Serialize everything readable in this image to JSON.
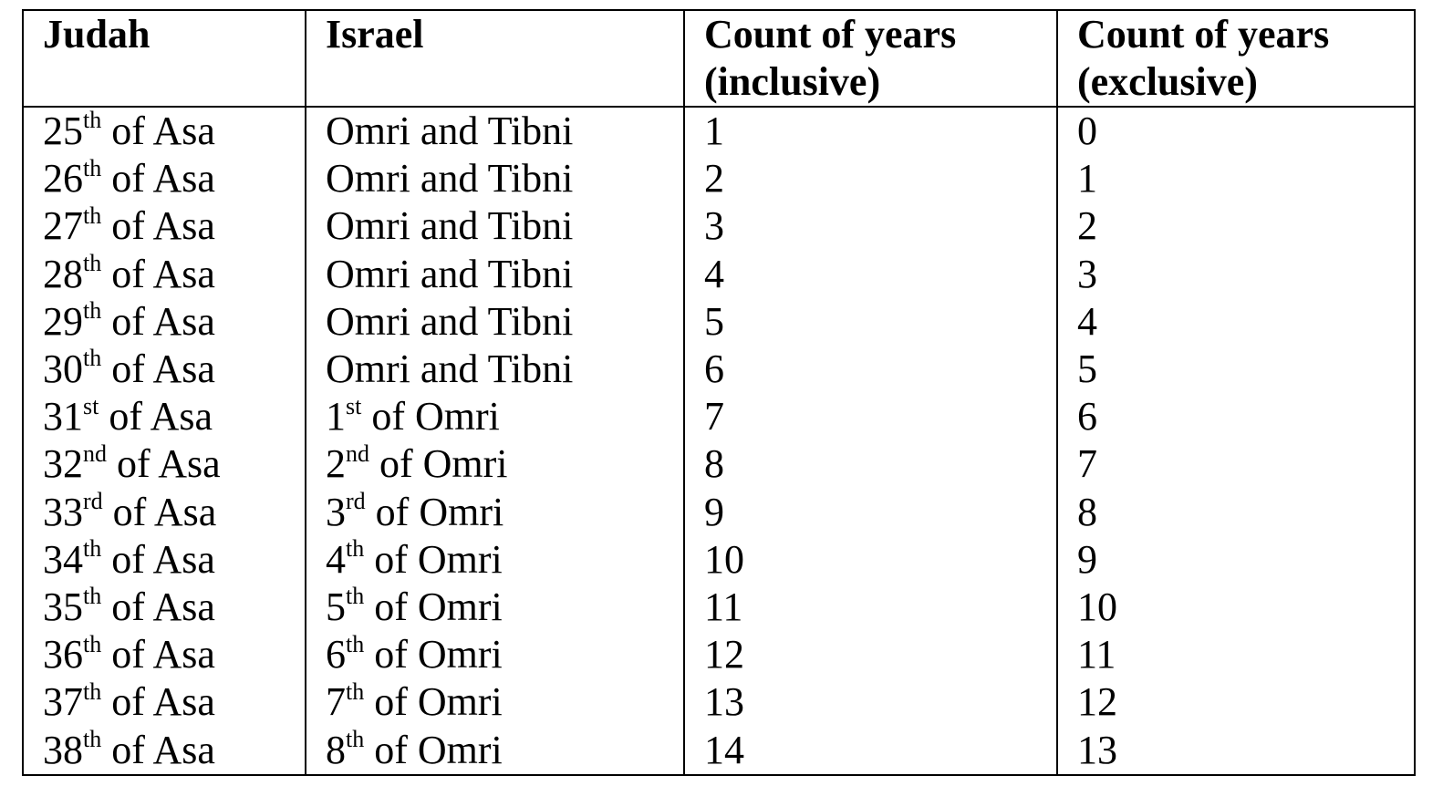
{
  "headers": {
    "judah": "Judah",
    "israel": "Israel",
    "inclusive": "Count of years (inclusive)",
    "exclusive": "Count of years (exclusive)"
  },
  "rows": [
    {
      "judah_num": "25",
      "judah_suf": "th",
      "judah_rest": " of Asa",
      "israel_num": "",
      "israel_suf": "",
      "israel_rest": "Omri and Tibni",
      "inclusive": "1",
      "exclusive": "0"
    },
    {
      "judah_num": "26",
      "judah_suf": "th",
      "judah_rest": " of Asa",
      "israel_num": "",
      "israel_suf": "",
      "israel_rest": "Omri and Tibni",
      "inclusive": "2",
      "exclusive": "1"
    },
    {
      "judah_num": "27",
      "judah_suf": "th",
      "judah_rest": " of Asa",
      "israel_num": "",
      "israel_suf": "",
      "israel_rest": "Omri and Tibni",
      "inclusive": "3",
      "exclusive": "2"
    },
    {
      "judah_num": "28",
      "judah_suf": "th",
      "judah_rest": " of Asa",
      "israel_num": "",
      "israel_suf": "",
      "israel_rest": "Omri and Tibni",
      "inclusive": "4",
      "exclusive": "3"
    },
    {
      "judah_num": "29",
      "judah_suf": "th",
      "judah_rest": " of Asa",
      "israel_num": "",
      "israel_suf": "",
      "israel_rest": "Omri and Tibni",
      "inclusive": "5",
      "exclusive": "4"
    },
    {
      "judah_num": "30",
      "judah_suf": "th",
      "judah_rest": " of Asa",
      "israel_num": "",
      "israel_suf": "",
      "israel_rest": "Omri and Tibni",
      "inclusive": "6",
      "exclusive": "5"
    },
    {
      "judah_num": "31",
      "judah_suf": "st",
      "judah_rest": " of Asa",
      "israel_num": "1",
      "israel_suf": "st",
      "israel_rest": " of Omri",
      "inclusive": "7",
      "exclusive": "6"
    },
    {
      "judah_num": "32",
      "judah_suf": "nd",
      "judah_rest": " of Asa",
      "israel_num": "2",
      "israel_suf": "nd",
      "israel_rest": " of Omri",
      "inclusive": "8",
      "exclusive": "7"
    },
    {
      "judah_num": "33",
      "judah_suf": "rd",
      "judah_rest": " of Asa",
      "israel_num": "3",
      "israel_suf": "rd",
      "israel_rest": " of Omri",
      "inclusive": "9",
      "exclusive": "8"
    },
    {
      "judah_num": "34",
      "judah_suf": "th",
      "judah_rest": " of Asa",
      "israel_num": "4",
      "israel_suf": "th",
      "israel_rest": " of Omri",
      "inclusive": "10",
      "exclusive": "9"
    },
    {
      "judah_num": "35",
      "judah_suf": "th",
      "judah_rest": " of Asa",
      "israel_num": "5",
      "israel_suf": "th",
      "israel_rest": " of Omri",
      "inclusive": "11",
      "exclusive": "10"
    },
    {
      "judah_num": "36",
      "judah_suf": "th",
      "judah_rest": " of Asa",
      "israel_num": "6",
      "israel_suf": "th",
      "israel_rest": " of Omri",
      "inclusive": "12",
      "exclusive": "11"
    },
    {
      "judah_num": "37",
      "judah_suf": "th",
      "judah_rest": " of Asa",
      "israel_num": "7",
      "israel_suf": "th",
      "israel_rest": " of Omri",
      "inclusive": "13",
      "exclusive": "12"
    },
    {
      "judah_num": "38",
      "judah_suf": "th",
      "judah_rest": " of Asa",
      "israel_num": "8",
      "israel_suf": "th",
      "israel_rest": " of Omri",
      "inclusive": "14",
      "exclusive": "13"
    }
  ]
}
